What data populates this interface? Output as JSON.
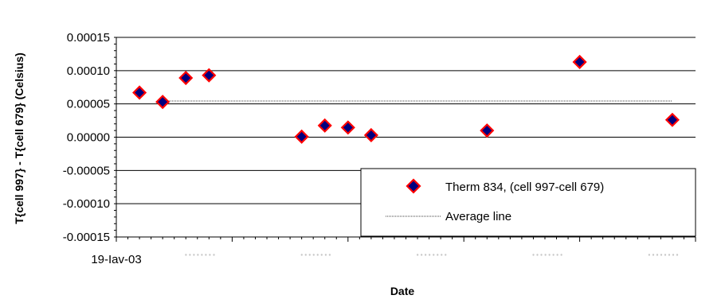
{
  "chart_data": {
    "type": "scatter",
    "title": "",
    "xlabel": "Date",
    "ylabel": "T{cell 997} - T{cell 679} (Celsius)",
    "ylim": [
      -0.00015,
      0.00015
    ],
    "yticks": [
      "0.00015",
      "0.00010",
      "0.00005",
      "0.00000",
      "-0.00005",
      "-0.00010",
      "-0.00015"
    ],
    "x_tick_label_first": "19-Iav-03",
    "x_tick_labels_other": [
      "ꞏꞏꞏꞏꞏꞏꞏꞏ",
      "ꞏꞏꞏꞏꞏꞏꞏꞏ",
      "ꞏꞏꞏꞏꞏꞏꞏꞏ",
      "ꞏꞏꞏꞏꞏꞏꞏꞏ",
      "ꞏꞏꞏꞏꞏꞏꞏꞏ"
    ],
    "grid": "horizontal",
    "legend_position": "bottom-right",
    "series": [
      {
        "name": "Therm 834, (cell 997-cell 679)",
        "marker": "diamond",
        "fill_color": "#00007f",
        "edge_color": "#ff0000",
        "x_day_index": [
          2,
          4,
          6,
          8,
          16,
          18,
          20,
          22,
          32,
          40,
          48
        ],
        "y": [
          6.7e-05,
          5.3e-05,
          8.9e-05,
          9.3e-05,
          8e-07,
          1.75e-05,
          1.45e-05,
          3e-06,
          1e-05,
          0.000113,
          2.6e-05
        ]
      },
      {
        "name": "Average line",
        "type": "line",
        "color": "#000000",
        "x_day_index": [
          0,
          48
        ],
        "y": [
          5.44e-05,
          5.44e-05
        ]
      }
    ]
  }
}
